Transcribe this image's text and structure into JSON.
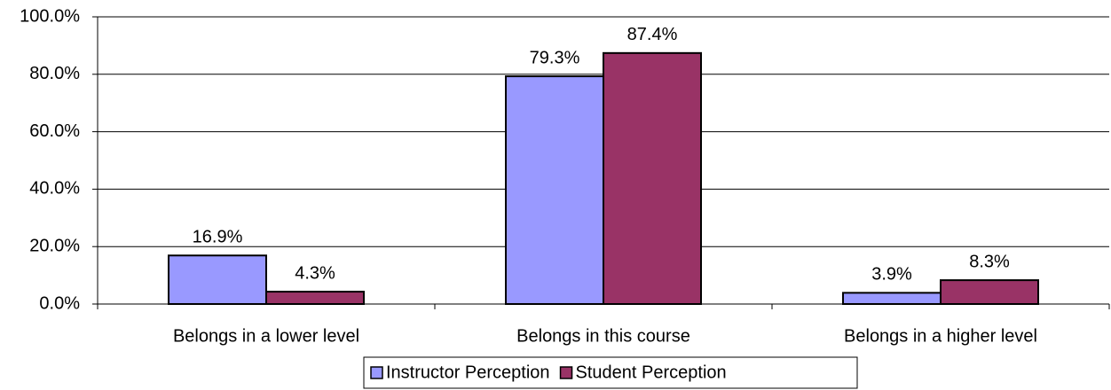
{
  "chart_data": {
    "type": "bar",
    "categories": [
      "Belongs in a lower level",
      "Belongs in this course",
      "Belongs in a higher level"
    ],
    "series": [
      {
        "name": "Instructor Perception",
        "color": "#9999ff",
        "values": [
          16.9,
          79.3,
          3.9
        ],
        "value_labels": [
          "16.9%",
          "79.3%",
          "3.9%"
        ]
      },
      {
        "name": "Student Perception",
        "color": "#993366",
        "values": [
          4.3,
          87.4,
          8.3
        ],
        "value_labels": [
          "4.3%",
          "87.4%",
          "8.3%"
        ]
      }
    ],
    "ylim": [
      0,
      100
    ],
    "yticks": [
      {
        "value": 0,
        "label": "0.0%"
      },
      {
        "value": 20,
        "label": "20.0%"
      },
      {
        "value": 40,
        "label": "40.0%"
      },
      {
        "value": 60,
        "label": "60.0%"
      },
      {
        "value": 80,
        "label": "80.0%"
      },
      {
        "value": 100,
        "label": "100.0%"
      }
    ],
    "grid": true,
    "legend": "bottom"
  }
}
